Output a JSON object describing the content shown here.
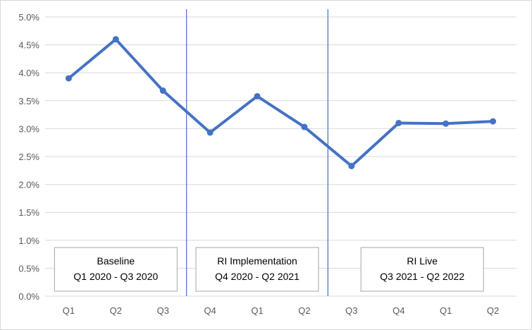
{
  "chart_data": {
    "type": "line",
    "title": "",
    "xlabel": "",
    "ylabel": "",
    "categories": [
      "Q1",
      "Q2",
      "Q3",
      "Q4",
      "Q1",
      "Q2",
      "Q3",
      "Q4",
      "Q1",
      "Q2"
    ],
    "series": [
      {
        "name": "",
        "color": "#4472c4",
        "values": [
          3.9,
          4.6,
          3.68,
          2.93,
          3.58,
          3.03,
          2.33,
          3.1,
          3.09,
          3.13
        ]
      }
    ],
    "ylim": [
      0,
      5
    ],
    "y_ticks": [
      "0.0%",
      "0.5%",
      "1.0%",
      "1.5%",
      "2.0%",
      "2.5%",
      "3.0%",
      "3.5%",
      "4.0%",
      "4.5%",
      "5.0%"
    ],
    "grid": true,
    "legend": "none",
    "phase_dividers": [
      {
        "between_categories": [
          2,
          3
        ]
      },
      {
        "between_categories": [
          5,
          6
        ]
      }
    ],
    "annotations": [
      {
        "line1": "Baseline",
        "line2": "Q1 2020 - Q3 2020"
      },
      {
        "line1": "RI Implementation",
        "line2": "Q4 2020 - Q2 2021"
      },
      {
        "line1": "RI Live",
        "line2": "Q3 2021 - Q2 2022"
      }
    ]
  }
}
